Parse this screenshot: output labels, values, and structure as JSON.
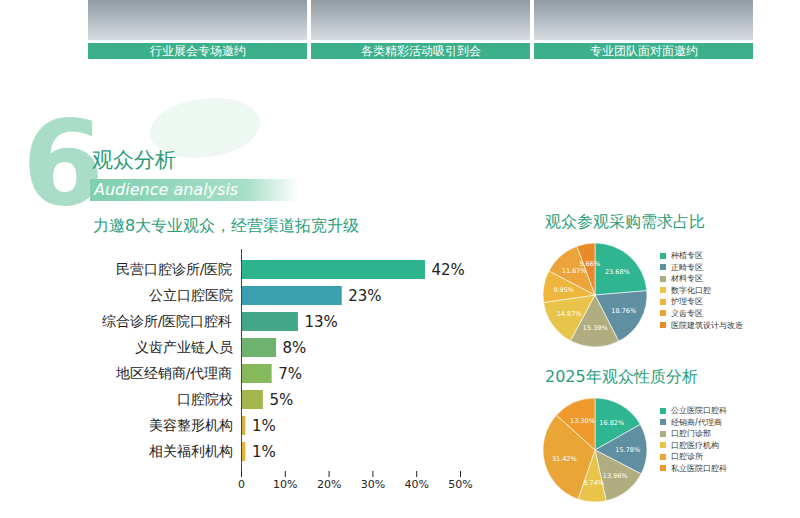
{
  "captions": [
    "行业展会专场邀约",
    "各类精彩活动吸引到会",
    "专业团队面对面邀约"
  ],
  "section": {
    "number": "6",
    "title": "观众分析",
    "subtitle": "Audience analysis"
  },
  "chart_data": [
    {
      "type": "bar",
      "title": "力邀8大专业观众，经营渠道拓宽升级",
      "orientation": "horizontal",
      "categories": [
        "民营口腔诊所/医院",
        "公立口腔医院",
        "综合诊所/医院口腔科",
        "义齿产业链人员",
        "地区经销商/代理商",
        "口腔院校",
        "美容整形机构",
        "相关福利机构"
      ],
      "values": [
        42,
        23,
        13,
        8,
        7,
        5,
        1,
        1
      ],
      "value_labels": [
        "42%",
        "23%",
        "13%",
        "8%",
        "7%",
        "5%",
        "1%",
        "1%"
      ],
      "colors": [
        "#2db38e",
        "#3aa0b0",
        "#44a78a",
        "#6db36d",
        "#86b85c",
        "#a3b64e",
        "#d4b441",
        "#e3b23c"
      ],
      "xlim": [
        0,
        50
      ],
      "xticks": [
        {
          "value": 0,
          "label": "0"
        },
        {
          "value": 10,
          "label": "10%"
        },
        {
          "value": 20,
          "label": "20%"
        },
        {
          "value": 30,
          "label": "30%"
        },
        {
          "value": 40,
          "label": "40%"
        },
        {
          "value": 50,
          "label": "50%"
        }
      ],
      "data_labels": true
    },
    {
      "type": "pie",
      "title": "观众参观采购需求占比",
      "categories": [
        "种植专区",
        "正畸专区",
        "材料专区",
        "数字化口腔",
        "护理专区",
        "义齿专区",
        "医院建筑设计与改造"
      ],
      "values": [
        23.68,
        18.76,
        15.39,
        14.87,
        9.95,
        11.67,
        5.66
      ],
      "value_labels": [
        "23.68%",
        "18.76%",
        "15.39%",
        "14.87%",
        "9.95%",
        "11.67%",
        "5.66%"
      ],
      "colors": [
        "#2fb58f",
        "#5f8fa0",
        "#b0ae80",
        "#e8c44a",
        "#eeb63c",
        "#eca43a",
        "#e88a2a"
      ],
      "legend": "right",
      "data_labels": true
    },
    {
      "type": "pie",
      "title": "2025年观众性质分析",
      "categories": [
        "公立医院口腔科",
        "经销商/代理商",
        "口腔门诊部",
        "口腔医疗机构",
        "口腔诊所",
        "私立医院口腔科"
      ],
      "values": [
        16.82,
        15.78,
        13.96,
        8.74,
        31.42,
        13.3
      ],
      "value_labels": [
        "16.82%",
        "15.78%",
        "13.96%",
        "8.74%",
        "31.42%",
        "13.30%"
      ],
      "colors": [
        "#2fb58f",
        "#5f8fa0",
        "#b0ae80",
        "#e8c44a",
        "#e9a637",
        "#f09a2e"
      ],
      "legend": "right",
      "data_labels": true
    }
  ]
}
